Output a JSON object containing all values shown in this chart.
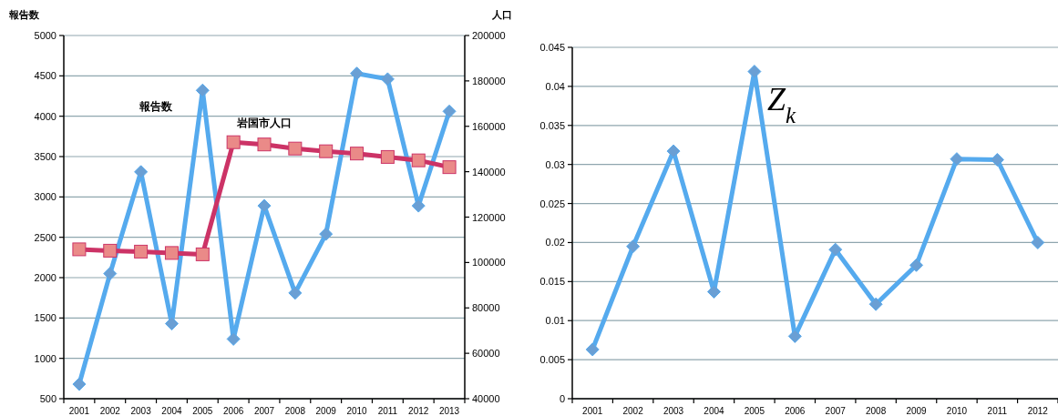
{
  "chart_data": [
    {
      "type": "line",
      "categories": [
        "2001",
        "2002",
        "2003",
        "2004",
        "2005",
        "2006",
        "2007",
        "2008",
        "2009",
        "2010",
        "2011",
        "2012",
        "2013"
      ],
      "ylabel": "報告数",
      "y2label": "人口",
      "ylim": [
        500,
        5000
      ],
      "yticks": [
        500,
        1000,
        1500,
        2000,
        2500,
        3000,
        3500,
        4000,
        4500,
        5000
      ],
      "y2lim": [
        40000,
        200000
      ],
      "y2ticks": [
        40000,
        60000,
        80000,
        100000,
        120000,
        140000,
        160000,
        180000,
        200000
      ],
      "grid": "y",
      "legend": false,
      "line_style": "solid",
      "series": [
        {
          "name": "報告数",
          "color": "#55aaee",
          "marker": "diamond",
          "values": [
            680,
            2050,
            3310,
            1430,
            4320,
            1240,
            2890,
            1810,
            2540,
            4530,
            4460,
            2890,
            4060
          ]
        },
        {
          "name": "岩国市人口",
          "color": "#cc3366",
          "marker": "square",
          "axis": "y2",
          "values": [
            105800,
            105200,
            104800,
            104200,
            103600,
            153000,
            152000,
            150200,
            149000,
            148000,
            146500,
            145000,
            142000
          ]
        }
      ]
    },
    {
      "type": "line",
      "categories": [
        "2001",
        "2002",
        "2003",
        "2004",
        "2005",
        "2006",
        "2007",
        "2008",
        "2009",
        "2010",
        "2011",
        "2012"
      ],
      "ylim": [
        0,
        0.045
      ],
      "yticks": [
        0,
        0.005,
        0.01,
        0.015,
        0.02,
        0.025,
        0.03,
        0.035,
        0.04,
        0.045
      ],
      "grid": "y",
      "legend": false,
      "line_style": "solid",
      "series": [
        {
          "name": "Z$_{k}$",
          "color": "#55aaee",
          "marker": "diamond",
          "values": [
            0.0063,
            0.0195,
            0.0317,
            0.0137,
            0.0419,
            0.008,
            0.0191,
            0.0121,
            0.0171,
            0.0307,
            0.0306,
            0.02
          ]
        }
      ]
    }
  ]
}
